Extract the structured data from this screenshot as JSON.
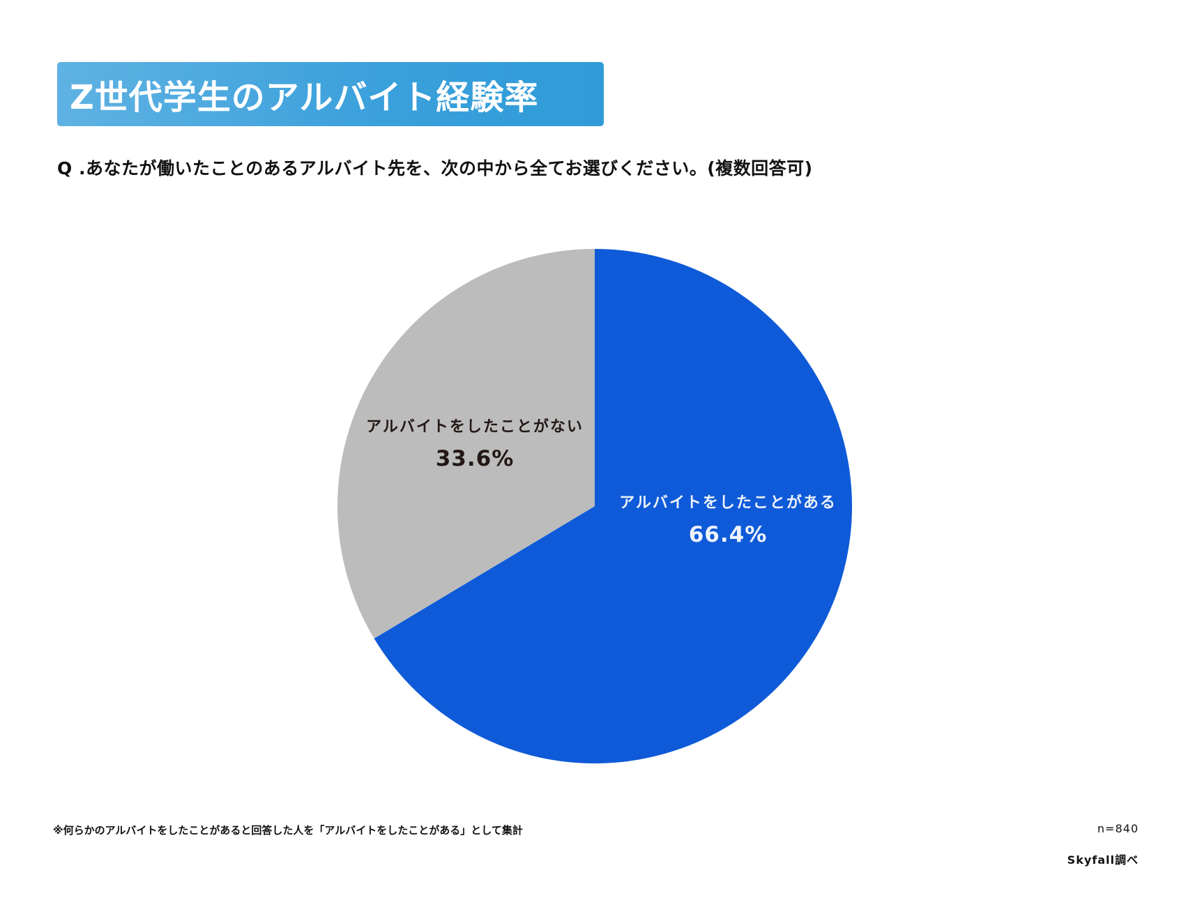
{
  "header": {
    "title": "Z世代学生のアルバイト経験率",
    "title_gradient": [
      "#5fb2e3",
      "#2f9bd8"
    ]
  },
  "question": "Q .あなたが働いたことのあるアルバイト先を、次の中から全てお選びください。(複数回答可)",
  "chart_data": {
    "type": "pie",
    "title": "Z世代学生のアルバイト経験率",
    "categories": [
      "アルバイトをしたことがある",
      "アルバイトをしたことがない"
    ],
    "values": [
      66.4,
      33.6
    ],
    "unit": "%",
    "colors": [
      "#0f5ad8",
      "#bcbcbc"
    ],
    "start_angle": "12 o'clock, clockwise",
    "legend": "none (labels inside slices)",
    "n": 840
  },
  "slices": [
    {
      "label": "アルバイトをしたことがある",
      "value_text": "66.4%"
    },
    {
      "label": "アルバイトをしたことがない",
      "value_text": "33.6%"
    }
  ],
  "footer": {
    "note": "※何らかのアルバイトをしたことがあると回答した人を「アルバイトをしたことがある」として集計",
    "sample_size": "n=840",
    "source": "Skyfall調べ"
  }
}
